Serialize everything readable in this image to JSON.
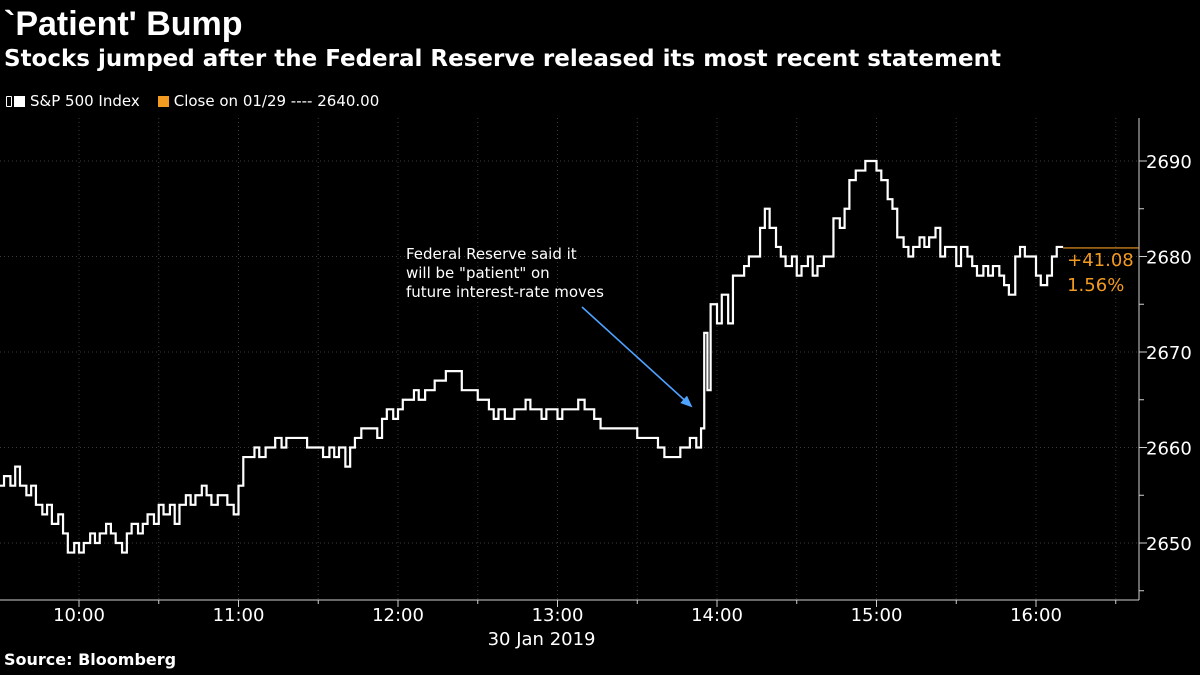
{
  "title": "`Patient' Bump",
  "subtitle": "Stocks jumped after the Federal Reserve released its most recent statement",
  "source": "Source: Bloomberg",
  "legend": {
    "series_label": "S&P 500 Index",
    "close_label": "Close on 01/29 ---- 2640.00",
    "series_color": "#ffffff",
    "close_color": "#f39a21"
  },
  "chart_data": {
    "type": "line",
    "title": "`Patient' Bump",
    "xlabel": "30 Jan 2019",
    "ylabel": "",
    "x_range_hours": [
      9.5,
      16.67
    ],
    "ylim": [
      2644,
      2694
    ],
    "x_ticks": [
      {
        "hour": 10,
        "label": "10:00"
      },
      {
        "hour": 11,
        "label": "11:00"
      },
      {
        "hour": 12,
        "label": "12:00"
      },
      {
        "hour": 13,
        "label": "13:00"
      },
      {
        "hour": 14,
        "label": "14:00"
      },
      {
        "hour": 15,
        "label": "15:00"
      },
      {
        "hour": 16,
        "label": "16:00"
      }
    ],
    "y_ticks": [
      2650,
      2660,
      2670,
      2680,
      2690
    ],
    "y_tick_labels": [
      "2650",
      "2660",
      "2670",
      "2680",
      "2690"
    ],
    "date_label": "30 Jan 2019",
    "series": [
      {
        "name": "S&P 500 Index",
        "color": "#ffffff",
        "points": [
          [
            9.5,
            2656
          ],
          [
            9.53,
            2657
          ],
          [
            9.57,
            2656
          ],
          [
            9.6,
            2658
          ],
          [
            9.63,
            2656
          ],
          [
            9.67,
            2655
          ],
          [
            9.7,
            2656
          ],
          [
            9.73,
            2654
          ],
          [
            9.77,
            2653
          ],
          [
            9.8,
            2654
          ],
          [
            9.83,
            2652
          ],
          [
            9.87,
            2653
          ],
          [
            9.9,
            2651
          ],
          [
            9.93,
            2649
          ],
          [
            9.97,
            2650
          ],
          [
            10.0,
            2649
          ],
          [
            10.03,
            2650
          ],
          [
            10.07,
            2651
          ],
          [
            10.1,
            2650
          ],
          [
            10.13,
            2651
          ],
          [
            10.17,
            2652
          ],
          [
            10.2,
            2651
          ],
          [
            10.23,
            2650
          ],
          [
            10.27,
            2649
          ],
          [
            10.3,
            2651
          ],
          [
            10.33,
            2652
          ],
          [
            10.37,
            2651
          ],
          [
            10.4,
            2652
          ],
          [
            10.43,
            2653
          ],
          [
            10.47,
            2652
          ],
          [
            10.5,
            2654
          ],
          [
            10.53,
            2653
          ],
          [
            10.57,
            2654
          ],
          [
            10.6,
            2652
          ],
          [
            10.63,
            2654
          ],
          [
            10.67,
            2655
          ],
          [
            10.7,
            2654
          ],
          [
            10.73,
            2655
          ],
          [
            10.77,
            2656
          ],
          [
            10.8,
            2655
          ],
          [
            10.83,
            2654
          ],
          [
            10.87,
            2655
          ],
          [
            10.9,
            2655
          ],
          [
            10.93,
            2654
          ],
          [
            10.97,
            2653
          ],
          [
            11.0,
            2656
          ],
          [
            11.03,
            2659
          ],
          [
            11.07,
            2659
          ],
          [
            11.1,
            2660
          ],
          [
            11.13,
            2659
          ],
          [
            11.17,
            2660
          ],
          [
            11.2,
            2660
          ],
          [
            11.23,
            2661
          ],
          [
            11.27,
            2660
          ],
          [
            11.3,
            2661
          ],
          [
            11.33,
            2661
          ],
          [
            11.37,
            2661
          ],
          [
            11.4,
            2661
          ],
          [
            11.43,
            2660
          ],
          [
            11.47,
            2660
          ],
          [
            11.5,
            2660
          ],
          [
            11.53,
            2659
          ],
          [
            11.57,
            2660
          ],
          [
            11.6,
            2659
          ],
          [
            11.63,
            2660
          ],
          [
            11.67,
            2658
          ],
          [
            11.7,
            2660
          ],
          [
            11.73,
            2661
          ],
          [
            11.77,
            2662
          ],
          [
            11.8,
            2662
          ],
          [
            11.83,
            2662
          ],
          [
            11.87,
            2661
          ],
          [
            11.9,
            2663
          ],
          [
            11.93,
            2664
          ],
          [
            11.97,
            2663
          ],
          [
            12.0,
            2664
          ],
          [
            12.03,
            2665
          ],
          [
            12.07,
            2665
          ],
          [
            12.1,
            2666
          ],
          [
            12.13,
            2665
          ],
          [
            12.17,
            2666
          ],
          [
            12.2,
            2666
          ],
          [
            12.23,
            2667
          ],
          [
            12.27,
            2667
          ],
          [
            12.3,
            2668
          ],
          [
            12.33,
            2668
          ],
          [
            12.37,
            2668
          ],
          [
            12.4,
            2666
          ],
          [
            12.43,
            2666
          ],
          [
            12.47,
            2666
          ],
          [
            12.5,
            2665
          ],
          [
            12.53,
            2665
          ],
          [
            12.57,
            2664
          ],
          [
            12.6,
            2663
          ],
          [
            12.63,
            2664
          ],
          [
            12.67,
            2663
          ],
          [
            12.7,
            2663
          ],
          [
            12.73,
            2664
          ],
          [
            12.77,
            2664
          ],
          [
            12.8,
            2665
          ],
          [
            12.83,
            2664
          ],
          [
            12.87,
            2664
          ],
          [
            12.9,
            2663
          ],
          [
            12.93,
            2664
          ],
          [
            12.97,
            2664
          ],
          [
            13.0,
            2663
          ],
          [
            13.03,
            2664
          ],
          [
            13.07,
            2664
          ],
          [
            13.1,
            2664
          ],
          [
            13.13,
            2665
          ],
          [
            13.17,
            2664
          ],
          [
            13.2,
            2664
          ],
          [
            13.23,
            2663
          ],
          [
            13.27,
            2662
          ],
          [
            13.3,
            2662
          ],
          [
            13.33,
            2662
          ],
          [
            13.37,
            2662
          ],
          [
            13.4,
            2662
          ],
          [
            13.43,
            2662
          ],
          [
            13.47,
            2662
          ],
          [
            13.5,
            2661
          ],
          [
            13.53,
            2661
          ],
          [
            13.57,
            2661
          ],
          [
            13.6,
            2661
          ],
          [
            13.63,
            2660
          ],
          [
            13.67,
            2659
          ],
          [
            13.7,
            2659
          ],
          [
            13.73,
            2659
          ],
          [
            13.77,
            2660
          ],
          [
            13.8,
            2660
          ],
          [
            13.83,
            2661
          ],
          [
            13.87,
            2660
          ],
          [
            13.9,
            2662
          ],
          [
            13.92,
            2672
          ],
          [
            13.94,
            2666
          ],
          [
            13.96,
            2675
          ],
          [
            14.0,
            2673
          ],
          [
            14.03,
            2676
          ],
          [
            14.07,
            2673
          ],
          [
            14.1,
            2678
          ],
          [
            14.13,
            2678
          ],
          [
            14.17,
            2679
          ],
          [
            14.2,
            2680
          ],
          [
            14.23,
            2680
          ],
          [
            14.27,
            2683
          ],
          [
            14.3,
            2685
          ],
          [
            14.33,
            2683
          ],
          [
            14.37,
            2681
          ],
          [
            14.4,
            2680
          ],
          [
            14.43,
            2679
          ],
          [
            14.47,
            2680
          ],
          [
            14.5,
            2678
          ],
          [
            14.53,
            2679
          ],
          [
            14.57,
            2680
          ],
          [
            14.6,
            2678
          ],
          [
            14.63,
            2679
          ],
          [
            14.67,
            2680
          ],
          [
            14.7,
            2680
          ],
          [
            14.73,
            2684
          ],
          [
            14.77,
            2683
          ],
          [
            14.8,
            2685
          ],
          [
            14.83,
            2688
          ],
          [
            14.87,
            2689
          ],
          [
            14.9,
            2689
          ],
          [
            14.93,
            2690
          ],
          [
            14.97,
            2690
          ],
          [
            15.0,
            2689
          ],
          [
            15.03,
            2688
          ],
          [
            15.07,
            2686
          ],
          [
            15.1,
            2685
          ],
          [
            15.13,
            2682
          ],
          [
            15.17,
            2681
          ],
          [
            15.2,
            2680
          ],
          [
            15.23,
            2681
          ],
          [
            15.27,
            2682
          ],
          [
            15.3,
            2681
          ],
          [
            15.33,
            2682
          ],
          [
            15.37,
            2683
          ],
          [
            15.4,
            2680
          ],
          [
            15.43,
            2681
          ],
          [
            15.47,
            2681
          ],
          [
            15.5,
            2679
          ],
          [
            15.53,
            2681
          ],
          [
            15.57,
            2680
          ],
          [
            15.6,
            2679
          ],
          [
            15.63,
            2678
          ],
          [
            15.67,
            2679
          ],
          [
            15.7,
            2678
          ],
          [
            15.73,
            2679
          ],
          [
            15.77,
            2678
          ],
          [
            15.8,
            2677
          ],
          [
            15.83,
            2676
          ],
          [
            15.87,
            2680
          ],
          [
            15.9,
            2681
          ],
          [
            15.93,
            2680
          ],
          [
            15.97,
            2680
          ],
          [
            16.0,
            2678
          ],
          [
            16.03,
            2677
          ],
          [
            16.07,
            2678
          ],
          [
            16.1,
            2680
          ],
          [
            16.13,
            2681
          ],
          [
            16.17,
            2681
          ]
        ]
      }
    ],
    "reference_line": {
      "name": "Close on 01/29",
      "value": 2640.0
    },
    "last_label": {
      "change": "+41.08",
      "percent": "1.56%"
    },
    "annotation": {
      "lines": [
        "Federal Reserve said it",
        "will be \"patient\" on",
        "future interest-rate moves"
      ],
      "arrow_color": "#4da3ff"
    }
  }
}
